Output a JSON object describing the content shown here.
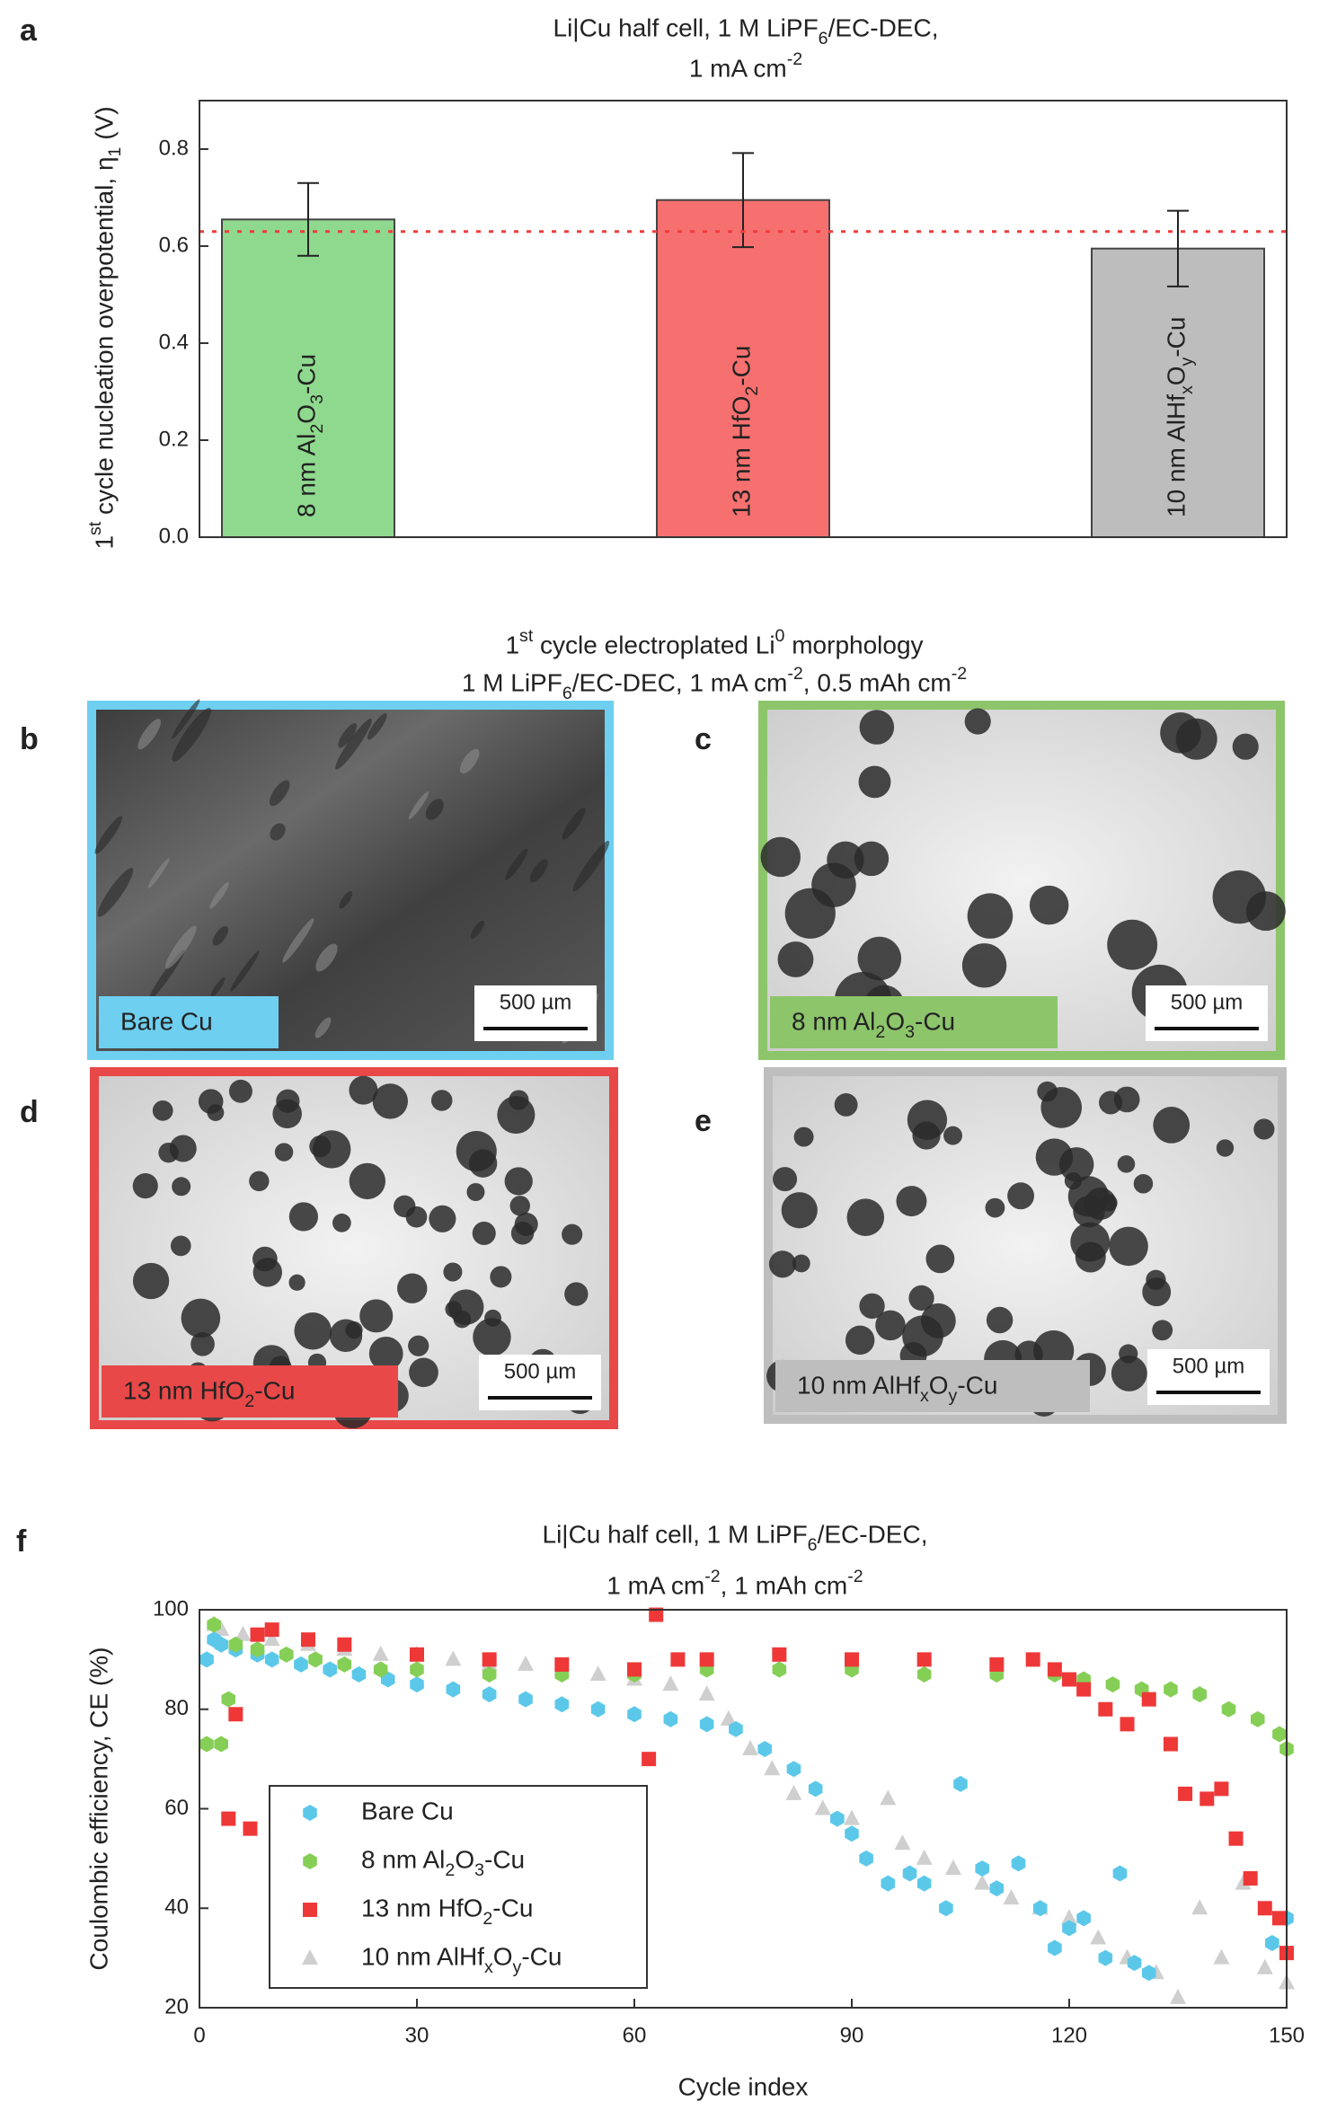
{
  "chart_data": [
    {
      "type": "bar",
      "panel_label": "a",
      "title": [
        "Li|Cu half cell, 1 M LiPF6/EC-DEC,",
        "1 mA cm-2"
      ],
      "ylabel": "1st cycle nucleation overpotential, η1 (V)",
      "categories": [
        "8 nm Al2O3-Cu",
        "13 nm HfO2-Cu",
        "10 nm AlHfxOy-Cu"
      ],
      "values": [
        0.655,
        0.695,
        0.595
      ],
      "errors": [
        0.075,
        0.097,
        0.078
      ],
      "colors": [
        "#8fd98f",
        "#f77070",
        "#bdbdbd"
      ],
      "reference_line": {
        "value": 0.63,
        "color": "#f03c3c"
      },
      "ylim": [
        0,
        0.9
      ],
      "yticks": [
        {
          "value": 0,
          "label": "0.0"
        },
        0.2,
        0.4,
        0.6,
        0.8
      ]
    },
    {
      "type": "scatter",
      "panel_label": "f",
      "title": [
        "Li|Cu half cell, 1 M LiPF6/EC-DEC,",
        "1 mA cm-2, 1 mAh cm-2"
      ],
      "xlabel": "Cycle index",
      "ylabel": "Coulombic efficiency, CE (%)",
      "xlim": [
        0,
        150
      ],
      "ylim": [
        20,
        100
      ],
      "xticks": [
        0,
        30,
        60,
        90,
        120,
        150
      ],
      "yticks": [
        20,
        40,
        60,
        80,
        100
      ],
      "legend": "lower left",
      "series": [
        {
          "name": "Bare Cu",
          "color": "#5bc8ea",
          "marker": "circle",
          "x": [
            1,
            2,
            3,
            5,
            8,
            10,
            14,
            18,
            22,
            26,
            30,
            35,
            40,
            45,
            50,
            55,
            60,
            65,
            70,
            74,
            78,
            82,
            85,
            88,
            90,
            92,
            95,
            98,
            100,
            103,
            105,
            108,
            110,
            113,
            116,
            118,
            120,
            122,
            125,
            127,
            129,
            131,
            148,
            150
          ],
          "values": [
            90,
            94,
            93,
            92,
            91,
            90,
            89,
            88,
            87,
            86,
            85,
            84,
            83,
            82,
            81,
            80,
            79,
            78,
            77,
            76,
            72,
            68,
            64,
            58,
            55,
            50,
            45,
            47,
            45,
            40,
            65,
            48,
            44,
            49,
            40,
            32,
            36,
            38,
            30,
            47,
            29,
            27,
            33,
            38
          ]
        },
        {
          "name": "8 nm Al2O3-Cu",
          "color": "#86cf56",
          "marker": "circle",
          "x": [
            1,
            2,
            3,
            4,
            5,
            8,
            12,
            16,
            20,
            25,
            30,
            40,
            50,
            60,
            70,
            80,
            90,
            100,
            110,
            118,
            122,
            126,
            130,
            134,
            138,
            142,
            146,
            149,
            150
          ],
          "values": [
            73,
            97,
            73,
            82,
            93,
            92,
            91,
            90,
            89,
            88,
            88,
            87,
            87,
            87,
            88,
            88,
            88,
            87,
            87,
            87,
            86,
            85,
            84,
            84,
            83,
            80,
            78,
            75,
            72
          ]
        },
        {
          "name": "13 nm HfO2-Cu",
          "color": "#ee3838",
          "marker": "square",
          "x": [
            4,
            5,
            7,
            8,
            10,
            15,
            20,
            30,
            40,
            50,
            60,
            62,
            63,
            66,
            70,
            80,
            90,
            100,
            110,
            115,
            118,
            120,
            122,
            125,
            128,
            131,
            134,
            136,
            139,
            141,
            143,
            145,
            147,
            149,
            150
          ],
          "values": [
            58,
            79,
            56,
            95,
            96,
            94,
            93,
            91,
            90,
            89,
            88,
            70,
            99,
            90,
            90,
            91,
            90,
            90,
            89,
            90,
            88,
            86,
            84,
            80,
            77,
            82,
            73,
            63,
            62,
            64,
            54,
            46,
            40,
            38,
            31
          ]
        },
        {
          "name": "10 nm AlHfxOy-Cu",
          "color": "#cfcfcf",
          "marker": "triangle",
          "x": [
            2,
            3,
            6,
            10,
            15,
            20,
            25,
            30,
            35,
            40,
            45,
            50,
            55,
            60,
            65,
            70,
            73,
            76,
            79,
            82,
            86,
            90,
            95,
            97,
            100,
            104,
            108,
            112,
            116,
            120,
            124,
            128,
            132,
            135,
            138,
            141,
            144,
            147,
            150
          ],
          "values": [
            97,
            96,
            95,
            94,
            93,
            92,
            91,
            91,
            90,
            89,
            89,
            88,
            87,
            86,
            85,
            83,
            78,
            72,
            68,
            63,
            60,
            58,
            62,
            53,
            50,
            48,
            45,
            42,
            40,
            38,
            34,
            30,
            27,
            22,
            40,
            30,
            45,
            28,
            25
          ]
        }
      ]
    }
  ],
  "micrographs": {
    "title": [
      "1st cycle electroplated Li0 morphology",
      "1 M LiPF6/EC-DEC, 1 mA cm-2, 0.5 mAh cm-2"
    ],
    "panels": [
      {
        "panel_label": "b",
        "label": "Bare Cu",
        "scale_bar": "500 µm",
        "color": "#6ecff0"
      },
      {
        "panel_label": "c",
        "label": "8 nm Al2O3-Cu",
        "scale_bar": "500 µm",
        "color": "#8dc56b"
      },
      {
        "panel_label": "d",
        "label": "13 nm HfO2-Cu",
        "scale_bar": "500 µm",
        "color": "#e84848"
      },
      {
        "panel_label": "e",
        "label": "10 nm AlHfxOy-Cu",
        "scale_bar": "500 µm",
        "color": "#bebebe"
      }
    ]
  }
}
